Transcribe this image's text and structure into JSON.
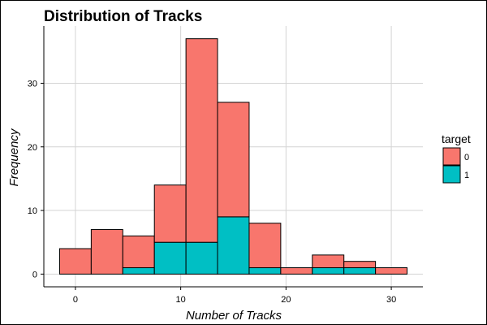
{
  "chart_data": {
    "type": "bar",
    "subtype": "stacked-histogram",
    "title": "Distribution of Tracks",
    "xlabel": "Number of Tracks",
    "ylabel": "Frequency",
    "xlim": [
      -3,
      33
    ],
    "ylim": [
      -2,
      39
    ],
    "x_ticks": [
      0,
      10,
      20,
      30
    ],
    "y_ticks": [
      0,
      10,
      20,
      30
    ],
    "grid": true,
    "bin_width": 3,
    "bins": [
      {
        "x0": -1.5,
        "x1": 1.5
      },
      {
        "x0": 1.5,
        "x1": 4.5
      },
      {
        "x0": 4.5,
        "x1": 7.5
      },
      {
        "x0": 7.5,
        "x1": 10.5
      },
      {
        "x0": 10.5,
        "x1": 13.5
      },
      {
        "x0": 13.5,
        "x1": 16.5
      },
      {
        "x0": 16.5,
        "x1": 19.5
      },
      {
        "x0": 19.5,
        "x1": 22.5
      },
      {
        "x0": 22.5,
        "x1": 25.5
      },
      {
        "x0": 25.5,
        "x1": 28.5
      },
      {
        "x0": 28.5,
        "x1": 31.5
      }
    ],
    "series": [
      {
        "name": "0",
        "color": "#F8766D",
        "values": [
          4,
          7,
          5,
          9,
          32,
          18,
          7,
          1,
          2,
          1,
          1
        ]
      },
      {
        "name": "1",
        "color": "#00BFC4",
        "values": [
          0,
          0,
          1,
          5,
          5,
          9,
          1,
          0,
          1,
          1,
          0
        ]
      }
    ],
    "stack_order_bottom_to_top": [
      "1",
      "0"
    ],
    "legend": {
      "title": "target",
      "placement": "right",
      "entries": [
        "0",
        "1"
      ]
    }
  }
}
